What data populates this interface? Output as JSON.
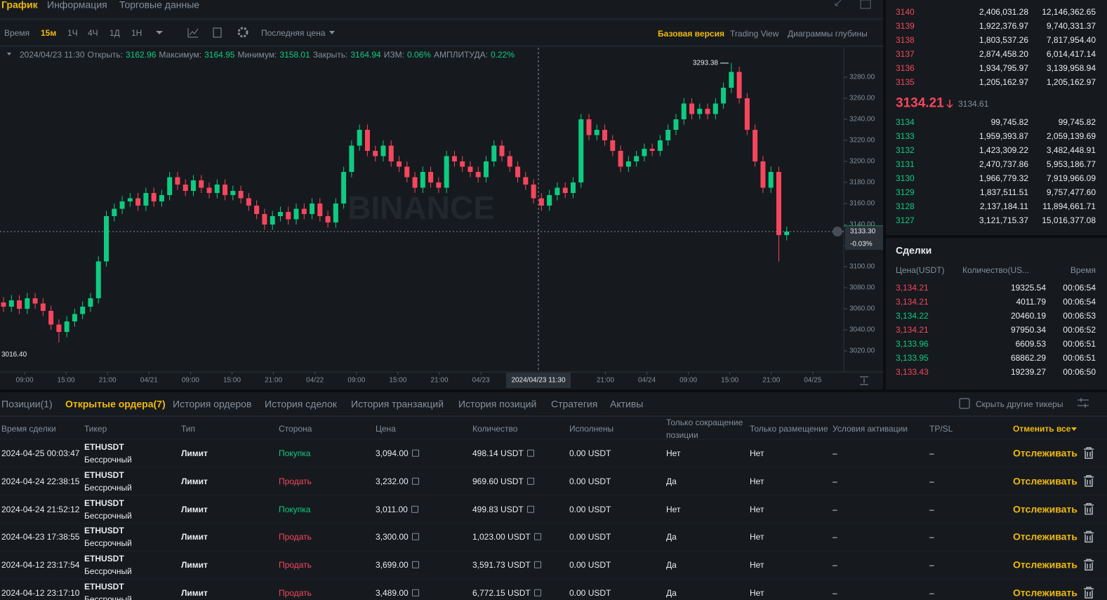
{
  "tabs": [
    "График",
    "Информация",
    "Торговые данные"
  ],
  "toolbar": {
    "time_label": "Время",
    "intervals": [
      "15м",
      "1Ч",
      "4Ч",
      "1Д",
      "1Н"
    ],
    "price_type": "Последняя цена",
    "views": [
      "Базовая версия",
      "Trading View",
      "Диаграммы глубины"
    ]
  },
  "ohlc": {
    "date": "2024/04/23 11:30",
    "items": [
      {
        "label": "Открыть:",
        "value": "3162.96"
      },
      {
        "label": "Максимум:",
        "value": "3164.95"
      },
      {
        "label": "Минимум:",
        "value": "3158.01"
      },
      {
        "label": "Закрыть:",
        "value": "3164.94"
      },
      {
        "label": "ИЗМ:",
        "value": "0.06%"
      },
      {
        "label": "АМПЛИТУДА:",
        "value": "0.22%"
      }
    ]
  },
  "chart_data": {
    "type": "candlestick",
    "watermark": "BINANCE",
    "open": [
      3066,
      3062,
      3068,
      3060,
      3070,
      3065,
      3058,
      3045,
      3038,
      3048,
      3055,
      3062,
      3070,
      3105,
      3148,
      3155,
      3162,
      3165,
      3158,
      3170,
      3162,
      3168,
      3185,
      3178,
      3172,
      3182,
      3175,
      3170,
      3178,
      3168,
      3172,
      3165,
      3158,
      3150,
      3140,
      3148,
      3152,
      3145,
      3155,
      3150,
      3160,
      3148,
      3142,
      3160,
      3190,
      3215,
      3230,
      3210,
      3205,
      3215,
      3200,
      3195,
      3185,
      3175,
      3190,
      3180,
      3175,
      3205,
      3200,
      3195,
      3190,
      3185,
      3200,
      3215,
      3205,
      3195,
      3185,
      3178,
      3165,
      3158,
      3168,
      3175,
      3170,
      3180,
      3240,
      3225,
      3230,
      3220,
      3210,
      3195,
      3200,
      3205,
      3212,
      3210,
      3220,
      3230,
      3240,
      3255,
      3245,
      3250,
      3245,
      3255,
      3270,
      3285,
      3260,
      3230,
      3200,
      3175,
      3190,
      3130
    ],
    "high": [
      3071,
      3073,
      3073,
      3075,
      3075,
      3070,
      3063,
      3050,
      3053,
      3060,
      3067,
      3075,
      3110,
      3153,
      3160,
      3167,
      3170,
      3170,
      3175,
      3175,
      3173,
      3190,
      3190,
      3183,
      3187,
      3187,
      3180,
      3183,
      3183,
      3177,
      3177,
      3170,
      3163,
      3155,
      3153,
      3157,
      3157,
      3160,
      3160,
      3165,
      3165,
      3153,
      3165,
      3195,
      3220,
      3235,
      3235,
      3215,
      3220,
      3220,
      3205,
      3200,
      3190,
      3195,
      3195,
      3185,
      3210,
      3210,
      3205,
      3200,
      3195,
      3205,
      3220,
      3220,
      3210,
      3200,
      3190,
      3183,
      3170,
      3173,
      3180,
      3180,
      3185,
      3245,
      3245,
      3235,
      3235,
      3225,
      3215,
      3205,
      3210,
      3217,
      3217,
      3225,
      3235,
      3245,
      3260,
      3260,
      3255,
      3255,
      3260,
      3275,
      3293.38,
      3290,
      3265,
      3235,
      3205,
      3195,
      3195,
      3138
    ],
    "low": [
      3057,
      3057,
      3055,
      3055,
      3060,
      3053,
      3040,
      3028,
      3033,
      3043,
      3050,
      3057,
      3065,
      3100,
      3143,
      3150,
      3157,
      3153,
      3153,
      3157,
      3157,
      3163,
      3173,
      3167,
      3167,
      3170,
      3165,
      3165,
      3163,
      3163,
      3160,
      3153,
      3145,
      3135,
      3135,
      3143,
      3140,
      3140,
      3145,
      3145,
      3143,
      3137,
      3137,
      3155,
      3185,
      3210,
      3205,
      3200,
      3200,
      3195,
      3190,
      3180,
      3170,
      3170,
      3175,
      3170,
      3170,
      3195,
      3190,
      3185,
      3180,
      3180,
      3195,
      3200,
      3190,
      3180,
      3173,
      3160,
      3153,
      3153,
      3163,
      3165,
      3165,
      3175,
      3220,
      3220,
      3215,
      3205,
      3190,
      3190,
      3195,
      3200,
      3205,
      3205,
      3215,
      3225,
      3235,
      3240,
      3240,
      3240,
      3240,
      3250,
      3265,
      3255,
      3225,
      3195,
      3170,
      3170,
      3105,
      3125
    ],
    "close": [
      3062,
      3068,
      3060,
      3070,
      3065,
      3058,
      3045,
      3038,
      3048,
      3055,
      3062,
      3070,
      3105,
      3148,
      3155,
      3162,
      3165,
      3158,
      3170,
      3162,
      3168,
      3185,
      3178,
      3172,
      3182,
      3175,
      3170,
      3178,
      3168,
      3172,
      3165,
      3158,
      3150,
      3140,
      3148,
      3152,
      3145,
      3155,
      3150,
      3160,
      3148,
      3142,
      3160,
      3190,
      3215,
      3230,
      3210,
      3205,
      3215,
      3200,
      3195,
      3185,
      3175,
      3190,
      3180,
      3175,
      3205,
      3200,
      3195,
      3190,
      3185,
      3200,
      3215,
      3205,
      3195,
      3185,
      3178,
      3165,
      3158,
      3168,
      3175,
      3170,
      3180,
      3240,
      3225,
      3230,
      3220,
      3210,
      3195,
      3200,
      3205,
      3212,
      3210,
      3220,
      3230,
      3240,
      3255,
      3245,
      3250,
      3245,
      3255,
      3270,
      3285,
      3260,
      3230,
      3200,
      3175,
      3190,
      3130,
      3133.3
    ],
    "up_color": "#0ecb81",
    "down_color": "#f6465d",
    "ylim": [
      3000,
      3308
    ],
    "yticks": [
      {
        "value": 3020,
        "label": "3020.00"
      },
      {
        "value": 3040,
        "label": "3040.00"
      },
      {
        "value": 3060,
        "label": "3060.00"
      },
      {
        "value": 3080,
        "label": "3080.00"
      },
      {
        "value": 3100,
        "label": "3100.00"
      },
      {
        "value": 3120,
        "label": "3120.00"
      },
      {
        "value": 3140,
        "label": "3140.00"
      },
      {
        "value": 3160,
        "label": "3160.00"
      },
      {
        "value": 3180,
        "label": "3180.00"
      },
      {
        "value": 3200,
        "label": "3200.00"
      },
      {
        "value": 3220,
        "label": "3220.00"
      },
      {
        "value": 3240,
        "label": "3240.00"
      },
      {
        "value": 3260,
        "label": "3260.00"
      },
      {
        "value": 3280,
        "label": "3280.00"
      }
    ],
    "xticks": [
      "09:00",
      "15:00",
      "21:00",
      "04/21",
      "09:00",
      "15:00",
      "21:00",
      "04/22",
      "09:00",
      "15:00",
      "21:00",
      "04/23",
      "21:00",
      "04/24",
      "09:00",
      "15:00",
      "21:00",
      "04/25"
    ],
    "crosshair_label": "2024/04/23 11:30",
    "last_price": {
      "value": 3133.3,
      "label": "3133.30"
    },
    "last_change": "-0.03%",
    "max_marker": {
      "value": 3293.38,
      "label": "3293.38"
    },
    "min_marker": {
      "value": 3016.4,
      "label": "3016.40"
    }
  },
  "order_book": {
    "asks": [
      [
        "3140",
        "2,406,031.28",
        "12,146,362.65"
      ],
      [
        "3139",
        "1,922,376.97",
        "9,740,331.37"
      ],
      [
        "3138",
        "1,803,537.26",
        "7,817,954.40"
      ],
      [
        "3137",
        "2,874,458.20",
        "6,014,417.14"
      ],
      [
        "3136",
        "1,934,795.97",
        "3,139,958.94"
      ],
      [
        "3135",
        "1,205,162.97",
        "1,205,162.97"
      ]
    ],
    "mid_price": "3134.21",
    "mark_price": "3134.61",
    "bids": [
      [
        "3134",
        "99,745.82",
        "99,745.82"
      ],
      [
        "3133",
        "1,959,393.87",
        "2,059,139.69"
      ],
      [
        "3132",
        "1,423,309.22",
        "3,482,448.91"
      ],
      [
        "3131",
        "2,470,737.86",
        "5,953,186.77"
      ],
      [
        "3130",
        "1,966,779.32",
        "7,919,966.09"
      ],
      [
        "3129",
        "1,837,511.51",
        "9,757,477.60"
      ],
      [
        "3128",
        "2,137,184.11",
        "11,894,661.71"
      ],
      [
        "3127",
        "3,121,715.37",
        "15,016,377.08"
      ]
    ]
  },
  "trades": {
    "title": "Сделки",
    "columns": [
      "Цена(USDT)",
      "Количество(US...",
      "Время"
    ],
    "rows": [
      {
        "price": "3,134.21",
        "qty": "19325.54",
        "time": "00:06:54",
        "color": "#f6465d"
      },
      {
        "price": "3,134.21",
        "qty": "4011.79",
        "time": "00:06:54",
        "color": "#f6465d"
      },
      {
        "price": "3,134.22",
        "qty": "20460.19",
        "time": "00:06:53",
        "color": "#0ecb81"
      },
      {
        "price": "3,134.21",
        "qty": "97950.34",
        "time": "00:06:52",
        "color": "#f6465d"
      },
      {
        "price": "3,133.96",
        "qty": "6609.53",
        "time": "00:06:51",
        "color": "#0ecb81"
      },
      {
        "price": "3,133.95",
        "qty": "68862.29",
        "time": "00:06:51",
        "color": "#0ecb81"
      },
      {
        "price": "3,133.43",
        "qty": "19239.27",
        "time": "00:06:50",
        "color": "#f6465d"
      }
    ]
  },
  "orders": {
    "tabs": [
      "Позиции(1)",
      "Открытые ордера(7)",
      "История ордеров",
      "История сделок",
      "История транзакций",
      "История позиций",
      "Стратегия",
      "Активы"
    ],
    "hide_others": "Скрыть другие тикеры",
    "columns": [
      "Время сделки",
      "Тикер",
      "Тип",
      "Сторона",
      "Цена",
      "Количество",
      "Исполнены",
      "Только сокращение позиции",
      "Только размещение",
      "Условия активации",
      "TP/SL"
    ],
    "cancel_all": "Отменить все",
    "rows": [
      {
        "time": "2024-04-25 00:03:47",
        "ticker": "ETHUSDT",
        "contract": "Бессрочный",
        "type": "Лимит",
        "side": "Покупка",
        "side_color": "#0ecb81",
        "price": "3,094.00",
        "qty": "498.14 USDT",
        "filled": "0.00 USDT",
        "reduce": "Нет",
        "post": "Нет",
        "trigger": "–",
        "tpsl": "–",
        "action": "Отслеживать"
      },
      {
        "time": "2024-04-24 22:38:15",
        "ticker": "ETHUSDT",
        "contract": "Бессрочный",
        "type": "Лимит",
        "side": "Продать",
        "side_color": "#f6465d",
        "price": "3,232.00",
        "qty": "969.60 USDT",
        "filled": "0.00 USDT",
        "reduce": "Да",
        "post": "Нет",
        "trigger": "–",
        "tpsl": "–",
        "action": "Отслеживать"
      },
      {
        "time": "2024-04-24 21:52:12",
        "ticker": "ETHUSDT",
        "contract": "Бессрочный",
        "type": "Лимит",
        "side": "Покупка",
        "side_color": "#0ecb81",
        "price": "3,011.00",
        "qty": "499.83 USDT",
        "filled": "0.00 USDT",
        "reduce": "Нет",
        "post": "Нет",
        "trigger": "–",
        "tpsl": "–",
        "action": "Отслеживать"
      },
      {
        "time": "2024-04-23 17:38:55",
        "ticker": "ETHUSDT",
        "contract": "Бессрочный",
        "type": "Лимит",
        "side": "Продать",
        "side_color": "#f6465d",
        "price": "3,300.00",
        "qty": "1,023.00 USDT",
        "filled": "0.00 USDT",
        "reduce": "Да",
        "post": "Нет",
        "trigger": "–",
        "tpsl": "–",
        "action": "Отслеживать"
      },
      {
        "time": "2024-04-12 23:17:54",
        "ticker": "ETHUSDT",
        "contract": "Бессрочный",
        "type": "Лимит",
        "side": "Продать",
        "side_color": "#f6465d",
        "price": "3,699.00",
        "qty": "3,591.73 USDT",
        "filled": "0.00 USDT",
        "reduce": "Да",
        "post": "Нет",
        "trigger": "–",
        "tpsl": "–",
        "action": "Отслеживать"
      },
      {
        "time": "2024-04-12 23:17:10",
        "ticker": "ETHUSDT",
        "contract": "Бессрочный",
        "type": "Лимит",
        "side": "Продать",
        "side_color": "#f6465d",
        "price": "3,489.00",
        "qty": "6,772.15 USDT",
        "filled": "0.00 USDT",
        "reduce": "Да",
        "post": "Нет",
        "trigger": "–",
        "tpsl": "–",
        "action": "Отслеживать"
      }
    ]
  }
}
